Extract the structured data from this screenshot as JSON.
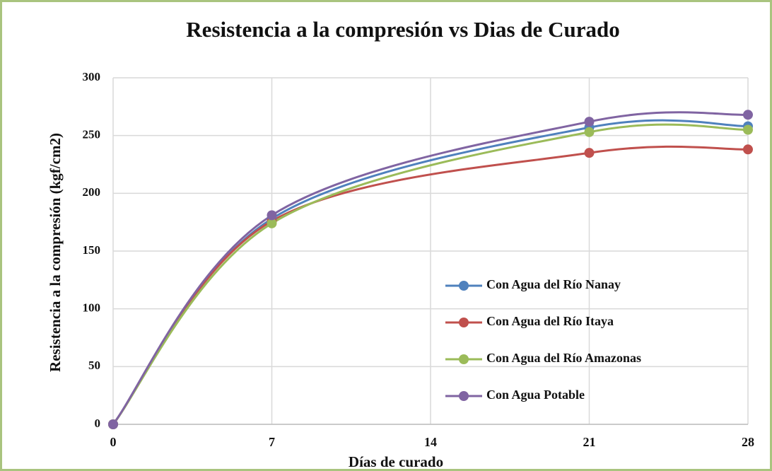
{
  "chart_data": {
    "type": "line",
    "title": "Resistencia a la compresión vs Dias de Curado",
    "xlabel": "Días de curado",
    "ylabel": "Resistencia a la compresión (kgf/cm2)",
    "x": [
      0,
      7,
      21,
      28
    ],
    "series": [
      {
        "name": "Con Agua del Río Nanay",
        "color": "#4f81bd",
        "values": [
          0,
          178,
          257,
          258
        ]
      },
      {
        "name": "Con Agua del Río Itaya",
        "color": "#c0504d",
        "values": [
          0,
          176,
          235,
          238
        ]
      },
      {
        "name": "Con Agua del Río Amazonas",
        "color": "#9bbb59",
        "values": [
          0,
          174,
          253,
          255
        ]
      },
      {
        "name": "Con Agua Potable",
        "color": "#8064a2",
        "values": [
          0,
          181,
          262,
          268
        ]
      }
    ],
    "xlim": [
      0,
      28
    ],
    "xticks": [
      0,
      7,
      14,
      21,
      28
    ],
    "ylim": [
      0,
      300
    ],
    "yticks": [
      0,
      50,
      100,
      150,
      200,
      250,
      300
    ],
    "grid": true,
    "smooth": true,
    "legend": "right"
  }
}
